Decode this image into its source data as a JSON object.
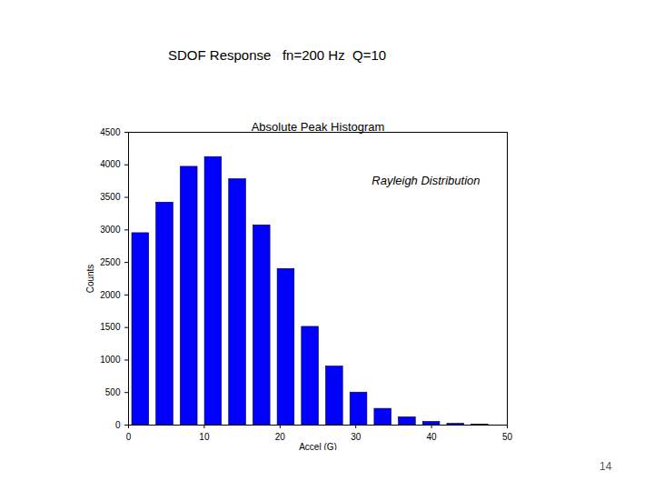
{
  "slide": {
    "heading": "SDOF Response   fn=200 Hz  Q=10",
    "page_number": "14"
  },
  "chart_data": {
    "type": "histogram",
    "title": "Absolute Peak Histogram",
    "annotations": [
      "Rayleigh Distribution"
    ],
    "xlabel": "Accel (G)",
    "ylabel": "Counts",
    "bins": [
      0,
      3.2,
      6.4,
      9.6,
      12.8,
      16,
      19.2,
      22.4,
      25.6,
      28.8,
      32,
      35.2,
      38.4,
      41.6,
      44.8,
      48
    ],
    "values": [
      2950,
      3420,
      3970,
      4120,
      3780,
      3070,
      2400,
      1510,
      900,
      500,
      250,
      120,
      50,
      20,
      5
    ],
    "color": "#0000ff",
    "xlim": [
      0,
      50
    ],
    "xticks": [
      0,
      10,
      20,
      30,
      40,
      50
    ],
    "ylim": [
      0,
      4500
    ],
    "yticks": [
      0,
      500,
      1000,
      1500,
      2000,
      2500,
      3000,
      3500,
      4000,
      4500
    ],
    "grid": false
  }
}
